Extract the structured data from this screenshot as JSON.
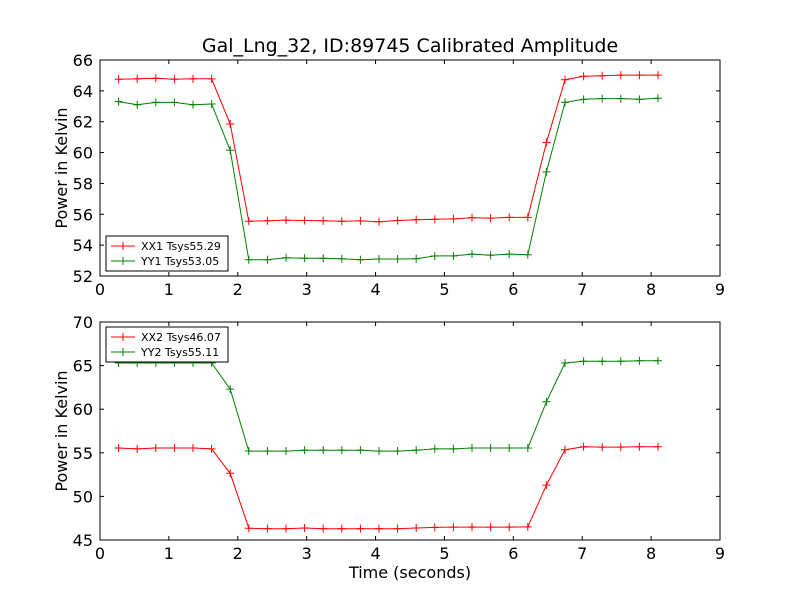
{
  "figure": {
    "title": "Gal_Lng_32, ID:89745 Calibrated Amplitude",
    "xlabel": "Time (seconds)"
  },
  "chart_data": [
    {
      "type": "line",
      "ylabel": "Power in Kelvin",
      "xlim": [
        0,
        9
      ],
      "ylim": [
        52,
        66
      ],
      "xticks": [
        "0",
        "1",
        "2",
        "3",
        "4",
        "5",
        "6",
        "7",
        "8",
        "9"
      ],
      "yticks": [
        "52",
        "54",
        "56",
        "58",
        "60",
        "62",
        "64",
        "66"
      ],
      "legend_position": "lower-left",
      "x": [
        0.27,
        0.54,
        0.81,
        1.08,
        1.35,
        1.62,
        1.89,
        2.16,
        2.43,
        2.7,
        2.97,
        3.24,
        3.51,
        3.78,
        4.05,
        4.32,
        4.59,
        4.86,
        5.13,
        5.4,
        5.67,
        5.94,
        6.21,
        6.48,
        6.75,
        7.02,
        7.29,
        7.56,
        7.83,
        8.1
      ],
      "series": [
        {
          "name": "XX1 Tsys55.29",
          "color": "#ff0000",
          "values": [
            64.75,
            64.78,
            64.82,
            64.75,
            64.78,
            64.78,
            61.85,
            55.55,
            55.58,
            55.62,
            55.6,
            55.58,
            55.55,
            55.57,
            55.52,
            55.6,
            55.65,
            55.68,
            55.7,
            55.78,
            55.75,
            55.8,
            55.8,
            60.65,
            64.72,
            64.95,
            64.98,
            65.02,
            65.02,
            65.02
          ]
        },
        {
          "name": "YY1 Tsys53.05",
          "color": "#008000",
          "values": [
            63.3,
            63.1,
            63.25,
            63.25,
            63.1,
            63.15,
            60.15,
            53.05,
            53.05,
            53.18,
            53.15,
            53.15,
            53.12,
            53.05,
            53.1,
            53.1,
            53.12,
            53.3,
            53.3,
            53.42,
            53.35,
            53.42,
            53.38,
            58.75,
            63.25,
            63.45,
            63.5,
            63.5,
            63.45,
            63.52
          ]
        }
      ]
    },
    {
      "type": "line",
      "ylabel": "Power in Kelvin",
      "xlim": [
        0,
        9
      ],
      "ylim": [
        45,
        70
      ],
      "xticks": [
        "0",
        "1",
        "2",
        "3",
        "4",
        "5",
        "6",
        "7",
        "8",
        "9"
      ],
      "yticks": [
        "45",
        "50",
        "55",
        "60",
        "65",
        "70"
      ],
      "legend_position": "upper-left",
      "x": [
        0.27,
        0.54,
        0.81,
        1.08,
        1.35,
        1.62,
        1.89,
        2.16,
        2.43,
        2.7,
        2.97,
        3.24,
        3.51,
        3.78,
        4.05,
        4.32,
        4.59,
        4.86,
        5.13,
        5.4,
        5.67,
        5.94,
        6.21,
        6.48,
        6.75,
        7.02,
        7.29,
        7.56,
        7.83,
        8.1
      ],
      "series": [
        {
          "name": "XX2 Tsys46.07",
          "color": "#ff0000",
          "values": [
            55.55,
            55.45,
            55.55,
            55.55,
            55.55,
            55.45,
            52.65,
            46.35,
            46.3,
            46.3,
            46.38,
            46.3,
            46.3,
            46.3,
            46.3,
            46.3,
            46.38,
            46.45,
            46.48,
            46.48,
            46.48,
            46.48,
            46.5,
            51.3,
            55.35,
            55.7,
            55.65,
            55.65,
            55.7,
            55.7
          ]
        },
        {
          "name": "YY2 Tsys55.11",
          "color": "#008000",
          "values": [
            65.3,
            65.3,
            65.3,
            65.3,
            65.3,
            65.3,
            62.3,
            55.2,
            55.2,
            55.2,
            55.3,
            55.3,
            55.3,
            55.3,
            55.2,
            55.2,
            55.3,
            55.45,
            55.45,
            55.55,
            55.55,
            55.55,
            55.55,
            60.85,
            65.3,
            65.5,
            65.5,
            65.5,
            65.55,
            65.55
          ]
        }
      ]
    }
  ]
}
